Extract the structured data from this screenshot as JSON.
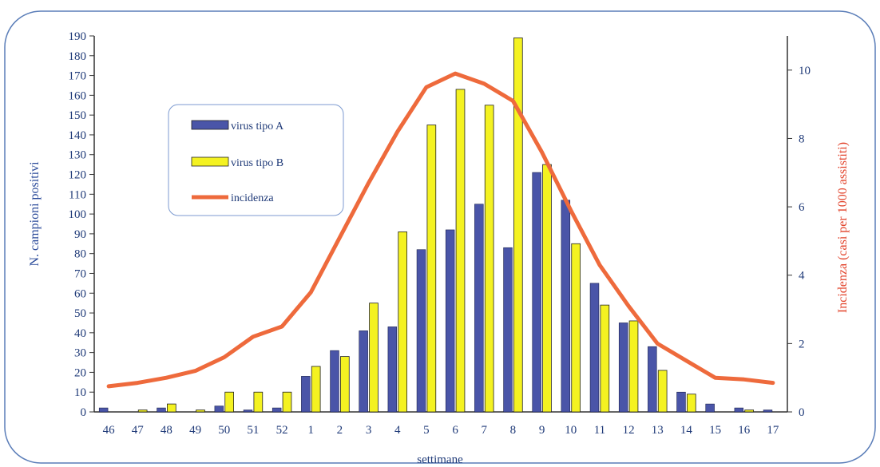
{
  "chart_data": {
    "type": "bar",
    "xlabel": "settimane",
    "ylabel": "N. campioni positivi",
    "y2label": "Incidenza (casi per 1000 assistiti)",
    "ylim": [
      0,
      190
    ],
    "y2lim": [
      0,
      11
    ],
    "yticks": [
      0,
      10,
      20,
      30,
      40,
      50,
      60,
      70,
      80,
      90,
      100,
      110,
      120,
      130,
      140,
      150,
      160,
      170,
      180,
      190
    ],
    "y2ticks": [
      0,
      2,
      4,
      6,
      8,
      10
    ],
    "legend_position": "upper-left",
    "grid": false,
    "categories": [
      "46",
      "47",
      "48",
      "49",
      "50",
      "51",
      "52",
      "1",
      "2",
      "3",
      "4",
      "5",
      "6",
      "7",
      "8",
      "9",
      "10",
      "11",
      "12",
      "13",
      "14",
      "15",
      "16",
      "17"
    ],
    "series": [
      {
        "name": "virus tipo A",
        "kind": "bar",
        "axis": "left",
        "color": "#4a55a8",
        "values": [
          2,
          0,
          2,
          0,
          3,
          1,
          2,
          18,
          31,
          41,
          43,
          82,
          92,
          105,
          83,
          121,
          107,
          65,
          45,
          33,
          10,
          4,
          2,
          1
        ]
      },
      {
        "name": "virus tipo B",
        "kind": "bar",
        "axis": "left",
        "color": "#f4f221",
        "values": [
          0,
          1,
          4,
          1,
          10,
          10,
          10,
          23,
          28,
          55,
          91,
          145,
          163,
          155,
          189,
          125,
          85,
          54,
          46,
          21,
          9,
          0,
          1,
          0
        ]
      },
      {
        "name": "incidenza",
        "kind": "line",
        "axis": "right",
        "color": "#ee6a3c",
        "values": [
          0.75,
          0.85,
          1.0,
          1.2,
          1.6,
          2.2,
          2.5,
          3.5,
          5.1,
          6.7,
          8.2,
          9.5,
          9.9,
          9.6,
          9.1,
          7.6,
          5.9,
          4.3,
          3.1,
          2.0,
          1.5,
          1.0,
          0.95,
          0.85
        ]
      }
    ]
  }
}
